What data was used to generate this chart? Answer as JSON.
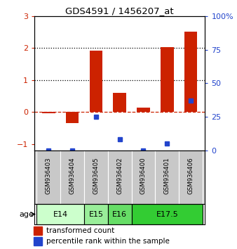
{
  "title": "GDS4591 / 1456207_at",
  "samples": [
    "GSM936403",
    "GSM936404",
    "GSM936405",
    "GSM936402",
    "GSM936400",
    "GSM936401",
    "GSM936406"
  ],
  "red_values": [
    -0.05,
    -0.35,
    1.93,
    0.6,
    0.13,
    2.02,
    2.52
  ],
  "blue_values_pct": [
    0,
    0,
    25,
    8,
    0,
    5,
    37
  ],
  "left_ylim": [
    -1.2,
    3.0
  ],
  "right_ylim": [
    0,
    100
  ],
  "left_yticks": [
    -1,
    0,
    1,
    2,
    3
  ],
  "right_yticks": [
    0,
    25,
    50,
    75,
    100
  ],
  "right_yticklabels": [
    "0",
    "25",
    "50",
    "75",
    "100%"
  ],
  "dotted_lines": [
    1.0,
    2.0
  ],
  "dashed_line": 0.0,
  "age_groups": [
    {
      "label": "E14",
      "start": 0,
      "end": 1,
      "color": "#ccffcc"
    },
    {
      "label": "E15",
      "start": 2,
      "end": 2,
      "color": "#99ee99"
    },
    {
      "label": "E16",
      "start": 3,
      "end": 3,
      "color": "#66dd66"
    },
    {
      "label": "E17.5",
      "start": 4,
      "end": 6,
      "color": "#33cc33"
    }
  ],
  "bar_color_red": "#cc2200",
  "bar_color_blue": "#2244cc",
  "bar_width": 0.55,
  "tick_color_left": "#cc2200",
  "tick_color_right": "#2244cc",
  "legend_red_label": "transformed count",
  "legend_blue_label": "percentile rank within the sample",
  "background_color": "#ffffff",
  "plot_bg": "#ffffff",
  "age_label": "age",
  "sample_bg": "#c8c8c8"
}
